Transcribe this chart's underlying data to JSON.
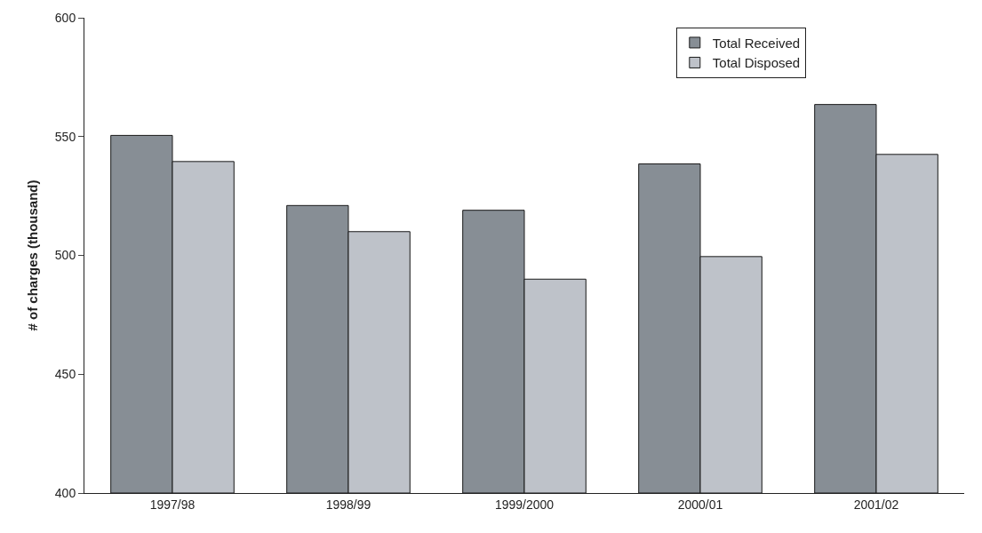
{
  "chart_data": {
    "type": "bar",
    "ylabel": "# of charges (thousand)",
    "categories": [
      "1997/98",
      "1998/99",
      "1999/2000",
      "2000/01",
      "2001/02"
    ],
    "series": [
      {
        "name": "Total Received",
        "color": "#878e95",
        "values": [
          550.5,
          521,
          519,
          538.5,
          563.5
        ]
      },
      {
        "name": "Total Disposed",
        "color": "#bec2c9",
        "values": [
          539.5,
          510,
          490,
          499.5,
          542.5
        ]
      }
    ],
    "ylim": [
      400,
      600
    ],
    "yticks": [
      400,
      450,
      500,
      550,
      600
    ],
    "legend": "top right"
  }
}
